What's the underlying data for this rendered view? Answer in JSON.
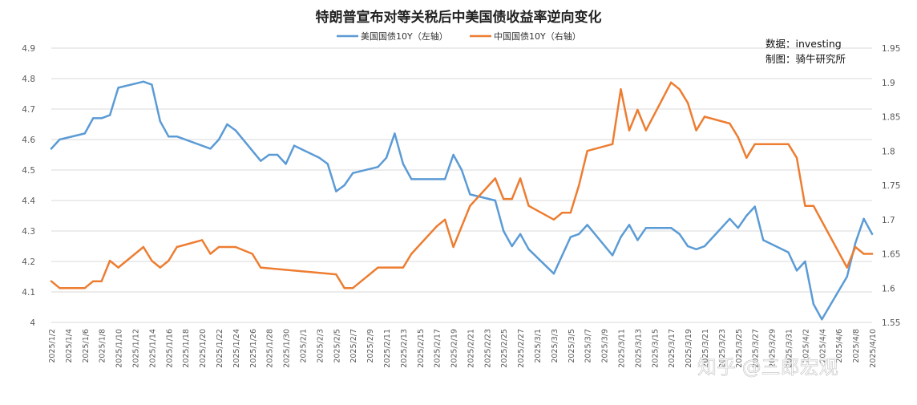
{
  "chart_data": {
    "type": "line",
    "title": "特朗普宣布对等关税后中美国债收益率逆向变化",
    "legend_position": "top-center",
    "grid": "horizontal",
    "annotations": [
      "数据：investing",
      "制图：骑牛研究所"
    ],
    "watermark": "知乎 @三郎宏观",
    "y_left": {
      "min": 4.0,
      "max": 4.9,
      "ticks": [
        "4",
        "4.1",
        "4.2",
        "4.3",
        "4.4",
        "4.5",
        "4.6",
        "4.7",
        "4.8",
        "4.9"
      ]
    },
    "y_right": {
      "min": 1.55,
      "max": 1.95,
      "ticks": [
        "1.55",
        "1.6",
        "1.65",
        "1.7",
        "1.75",
        "1.8",
        "1.85",
        "1.9",
        "1.95"
      ]
    },
    "x_range": [
      "2025/1/2",
      "2025/4/10"
    ],
    "x_tick_labels": [
      "2025/1/2",
      "2025/1/4",
      "2025/1/6",
      "2025/1/8",
      "2025/1/10",
      "2025/1/12",
      "2025/1/14",
      "2025/1/16",
      "2025/1/18",
      "2025/1/20",
      "2025/1/22",
      "2025/1/24",
      "2025/1/26",
      "2025/1/28",
      "2025/1/30",
      "2025/2/1",
      "2025/2/3",
      "2025/2/5",
      "2025/2/7",
      "2025/2/9",
      "2025/2/11",
      "2025/2/13",
      "2025/2/15",
      "2025/2/17",
      "2025/2/19",
      "2025/2/21",
      "2025/2/23",
      "2025/2/25",
      "2025/2/27",
      "2025/3/1",
      "2025/3/3",
      "2025/3/5",
      "2025/3/7",
      "2025/3/9",
      "2025/3/11",
      "2025/3/13",
      "2025/3/15",
      "2025/3/17",
      "2025/3/19",
      "2025/3/21",
      "2025/3/23",
      "2025/3/25",
      "2025/3/27",
      "2025/3/29",
      "2025/3/31",
      "2025/4/2",
      "2025/4/4",
      "2025/4/6",
      "2025/4/8",
      "2025/4/10"
    ],
    "series": [
      {
        "name": "美国国债10Y（左轴）",
        "axis": "left",
        "color": "#5b9bd5",
        "x": [
          "2025/1/2",
          "2025/1/3",
          "2025/1/6",
          "2025/1/7",
          "2025/1/8",
          "2025/1/9",
          "2025/1/10",
          "2025/1/13",
          "2025/1/14",
          "2025/1/15",
          "2025/1/16",
          "2025/1/17",
          "2025/1/21",
          "2025/1/22",
          "2025/1/23",
          "2025/1/24",
          "2025/1/27",
          "2025/1/28",
          "2025/1/29",
          "2025/1/30",
          "2025/1/31",
          "2025/2/3",
          "2025/2/4",
          "2025/2/5",
          "2025/2/6",
          "2025/2/7",
          "2025/2/10",
          "2025/2/11",
          "2025/2/12",
          "2025/2/13",
          "2025/2/14",
          "2025/2/18",
          "2025/2/19",
          "2025/2/20",
          "2025/2/21",
          "2025/2/24",
          "2025/2/25",
          "2025/2/26",
          "2025/2/27",
          "2025/2/28",
          "2025/3/3",
          "2025/3/4",
          "2025/3/5",
          "2025/3/6",
          "2025/3/7",
          "2025/3/10",
          "2025/3/11",
          "2025/3/12",
          "2025/3/13",
          "2025/3/14",
          "2025/3/17",
          "2025/3/18",
          "2025/3/19",
          "2025/3/20",
          "2025/3/21",
          "2025/3/24",
          "2025/3/25",
          "2025/3/26",
          "2025/3/27",
          "2025/3/28",
          "2025/3/31",
          "2025/4/1",
          "2025/4/2",
          "2025/4/3",
          "2025/4/4",
          "2025/4/7",
          "2025/4/8",
          "2025/4/9",
          "2025/4/10"
        ],
        "y": [
          4.57,
          4.6,
          4.62,
          4.67,
          4.67,
          4.68,
          4.77,
          4.79,
          4.78,
          4.66,
          4.61,
          4.61,
          4.57,
          4.6,
          4.65,
          4.63,
          4.53,
          4.55,
          4.55,
          4.52,
          4.58,
          4.54,
          4.52,
          4.43,
          4.45,
          4.49,
          4.51,
          4.54,
          4.62,
          4.52,
          4.47,
          4.47,
          4.55,
          4.5,
          4.42,
          4.4,
          4.3,
          4.25,
          4.29,
          4.24,
          4.16,
          4.22,
          4.28,
          4.29,
          4.32,
          4.22,
          4.28,
          4.32,
          4.27,
          4.31,
          4.31,
          4.29,
          4.25,
          4.24,
          4.25,
          4.34,
          4.31,
          4.35,
          4.38,
          4.27,
          4.23,
          4.17,
          4.2,
          4.06,
          4.01,
          4.15,
          4.26,
          4.34,
          4.29
        ]
      },
      {
        "name": "中国国债10Y（右轴）",
        "axis": "right",
        "color": "#ed7d31",
        "x": [
          "2025/1/2",
          "2025/1/3",
          "2025/1/6",
          "2025/1/7",
          "2025/1/8",
          "2025/1/9",
          "2025/1/10",
          "2025/1/13",
          "2025/1/14",
          "2025/1/15",
          "2025/1/16",
          "2025/1/17",
          "2025/1/20",
          "2025/1/21",
          "2025/1/22",
          "2025/1/23",
          "2025/1/24",
          "2025/1/26",
          "2025/1/27",
          "2025/2/5",
          "2025/2/6",
          "2025/2/7",
          "2025/2/8",
          "2025/2/10",
          "2025/2/11",
          "2025/2/12",
          "2025/2/13",
          "2025/2/14",
          "2025/2/17",
          "2025/2/18",
          "2025/2/19",
          "2025/2/20",
          "2025/2/21",
          "2025/2/24",
          "2025/2/25",
          "2025/2/26",
          "2025/2/27",
          "2025/2/28",
          "2025/3/3",
          "2025/3/4",
          "2025/3/5",
          "2025/3/6",
          "2025/3/7",
          "2025/3/10",
          "2025/3/11",
          "2025/3/12",
          "2025/3/13",
          "2025/3/14",
          "2025/3/17",
          "2025/3/18",
          "2025/3/19",
          "2025/3/20",
          "2025/3/21",
          "2025/3/24",
          "2025/3/25",
          "2025/3/26",
          "2025/3/27",
          "2025/3/28",
          "2025/3/31",
          "2025/4/1",
          "2025/4/2",
          "2025/4/3",
          "2025/4/7",
          "2025/4/8",
          "2025/4/9",
          "2025/4/10"
        ],
        "y": [
          1.61,
          1.6,
          1.6,
          1.61,
          1.61,
          1.64,
          1.63,
          1.66,
          1.64,
          1.63,
          1.64,
          1.66,
          1.67,
          1.65,
          1.66,
          1.66,
          1.66,
          1.65,
          1.63,
          1.62,
          1.6,
          1.6,
          1.61,
          1.63,
          1.63,
          1.63,
          1.63,
          1.65,
          1.69,
          1.7,
          1.66,
          1.69,
          1.72,
          1.76,
          1.73,
          1.73,
          1.76,
          1.72,
          1.7,
          1.71,
          1.71,
          1.75,
          1.8,
          1.81,
          1.89,
          1.83,
          1.86,
          1.83,
          1.9,
          1.89,
          1.87,
          1.83,
          1.85,
          1.84,
          1.82,
          1.79,
          1.81,
          1.81,
          1.81,
          1.79,
          1.72,
          1.72,
          1.63,
          1.66,
          1.65,
          1.65
        ]
      }
    ]
  }
}
